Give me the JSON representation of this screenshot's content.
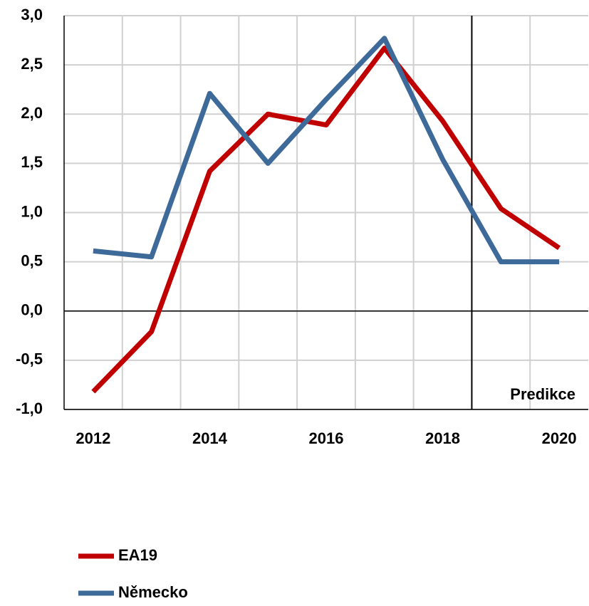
{
  "chart_data": {
    "type": "line",
    "categories": [
      "2012",
      null,
      "2014",
      null,
      "2016",
      null,
      "2018",
      null,
      "2020"
    ],
    "series": [
      {
        "name": "EA19",
        "color": "#c00000",
        "values": [
          -0.82,
          -0.21,
          1.42,
          2.0,
          1.89,
          2.67,
          1.93,
          1.04,
          0.64
        ]
      },
      {
        "name": "Německo",
        "color": "#3e6a9a",
        "values": [
          0.61,
          0.55,
          2.21,
          1.5,
          2.15,
          2.77,
          1.54,
          0.5,
          0.5
        ]
      }
    ],
    "ylim": [
      -1,
      3
    ],
    "yticks": [
      {
        "value": -1,
        "label": "-1,0"
      },
      {
        "value": -0.5,
        "label": "-0,5"
      },
      {
        "value": 0,
        "label": "0,0"
      },
      {
        "value": 0.5,
        "label": "0,5"
      },
      {
        "value": 1,
        "label": "1,0"
      },
      {
        "value": 1.5,
        "label": "1,5"
      },
      {
        "value": 2,
        "label": "2,0"
      },
      {
        "value": 2.5,
        "label": "2,5"
      },
      {
        "value": 3,
        "label": "3,0"
      }
    ],
    "grid": true,
    "annotation": {
      "text": "Predikce",
      "before_category": 7
    }
  }
}
